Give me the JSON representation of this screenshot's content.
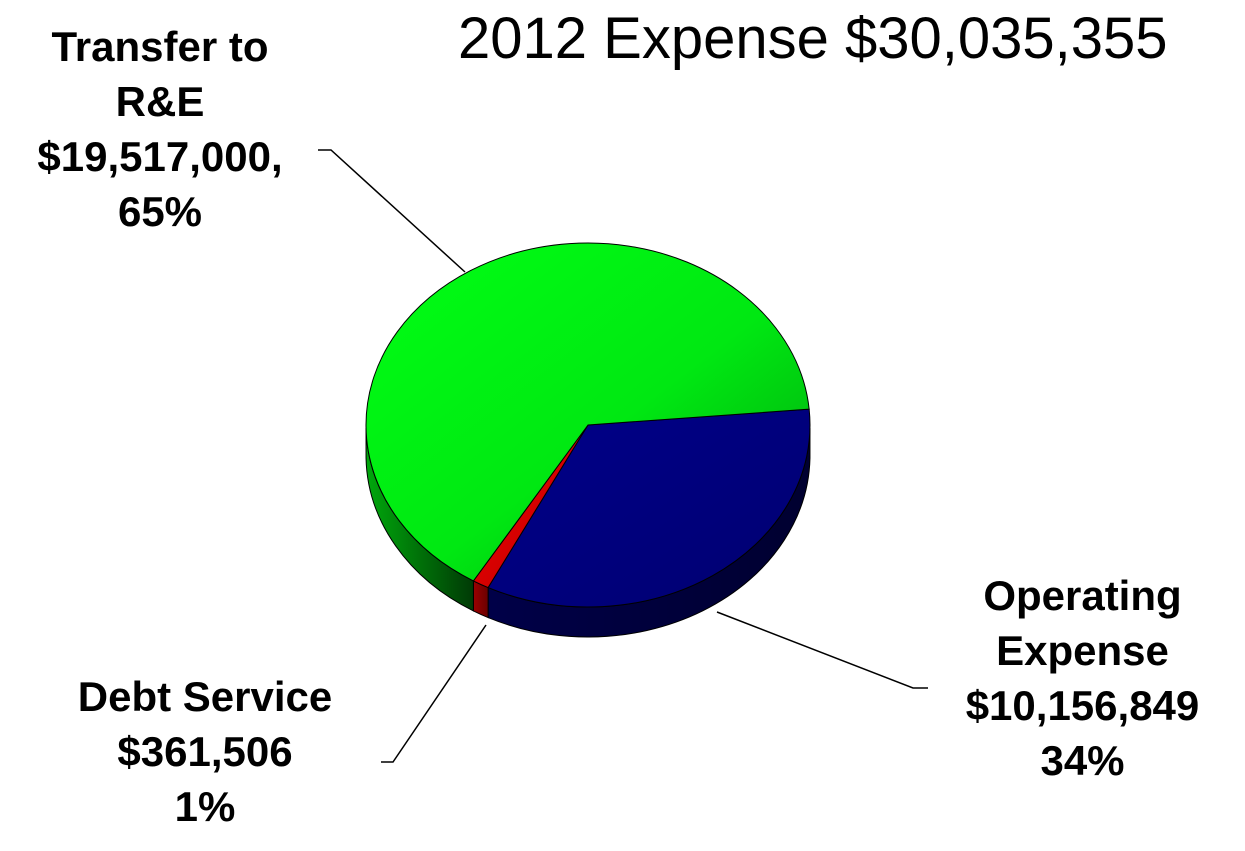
{
  "chart_data": {
    "type": "pie",
    "title": "2012 Expense $30,035,355",
    "slices": [
      {
        "name": "Transfer to R&E",
        "value": 19517000,
        "percent": 65,
        "color": "#00ee10",
        "label_lines": [
          "Transfer to",
          "R&E",
          "$19,517,000,",
          "65%"
        ]
      },
      {
        "name": "Operating Expense",
        "value": 10156849,
        "percent": 34,
        "color": "#000080",
        "label_lines": [
          "Operating",
          "Expense",
          "$10,156,849",
          "34%"
        ]
      },
      {
        "name": "Debt Service",
        "value": 361506,
        "percent": 1,
        "color": "#dd0000",
        "label_lines": [
          "Debt Service",
          "$361,506",
          "1%"
        ]
      }
    ],
    "style": "3d-pie"
  }
}
